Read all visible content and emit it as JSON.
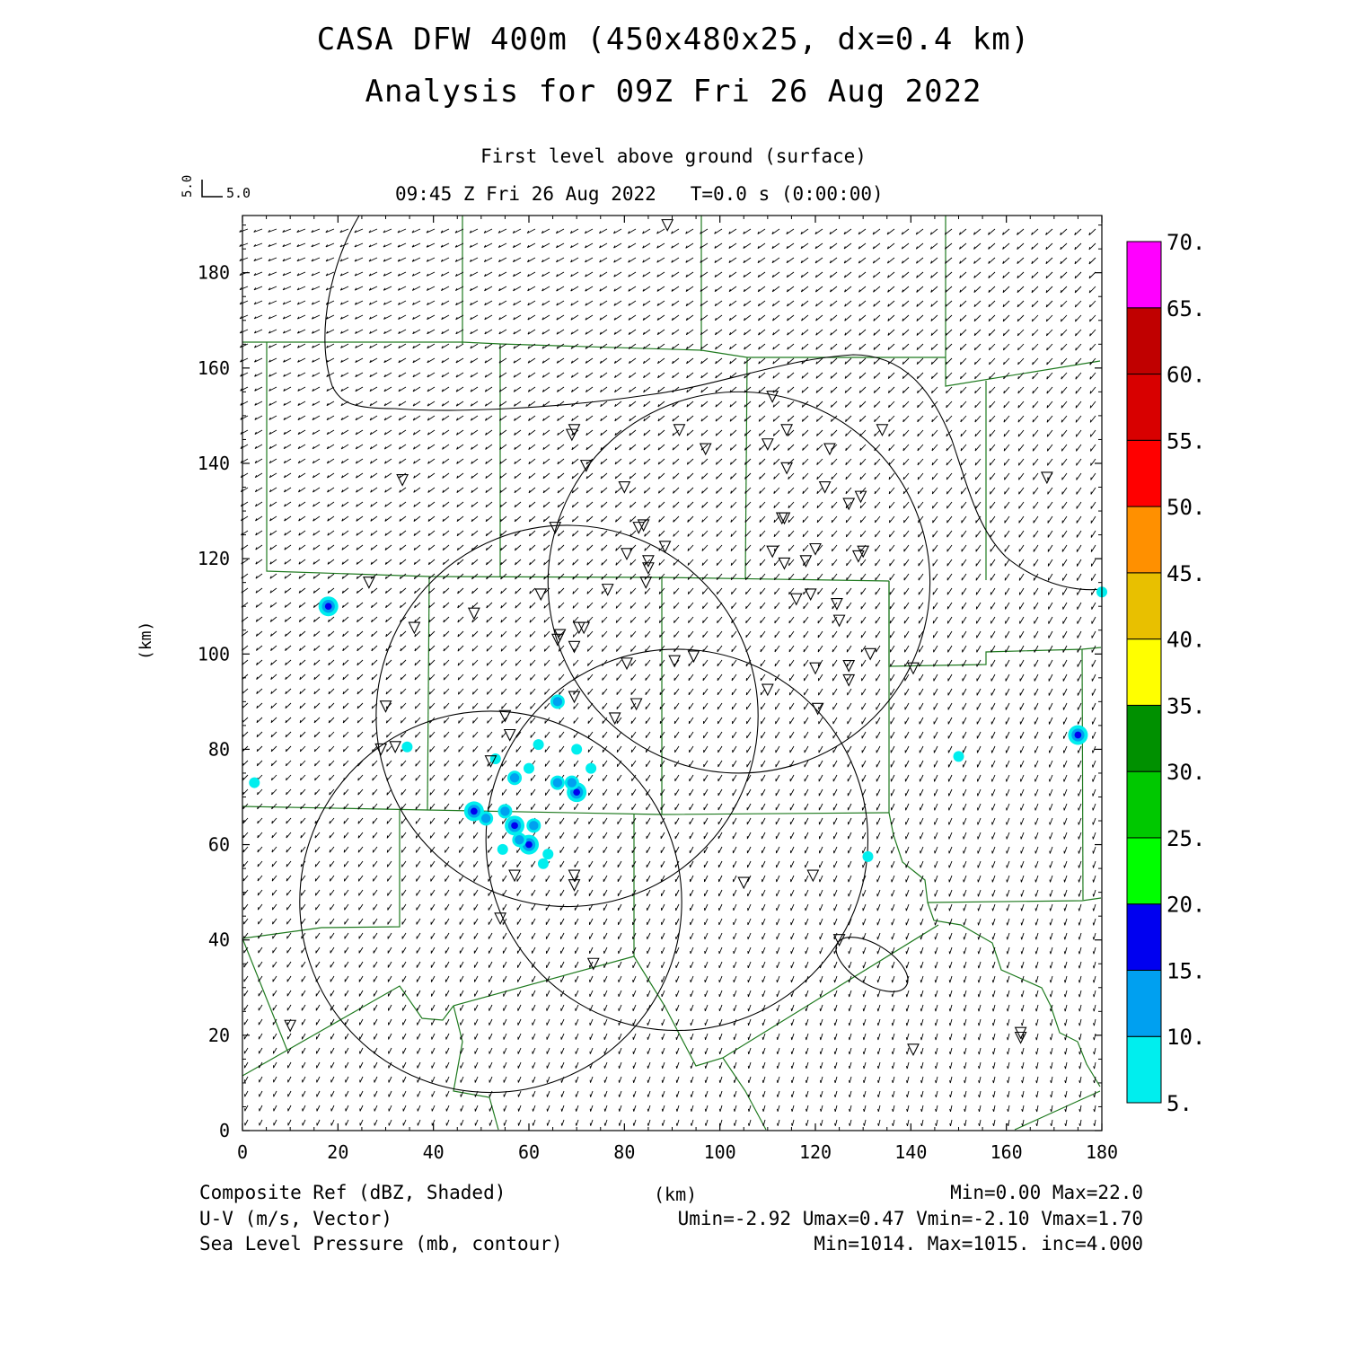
{
  "title": {
    "line1": "CASA DFW 400m (450x480x25, dx=0.4 km)",
    "line2": "Analysis for 09Z Fri 26 Aug 2022"
  },
  "subtitle": {
    "level": "First level above ground (surface)",
    "time": "09:45 Z Fri 26 Aug 2022   T=0.0 s (0:00:00)"
  },
  "vector_key": {
    "u_label": "5.0",
    "v_label": "5.0"
  },
  "axes": {
    "xlabel": "(km)",
    "ylabel": "(km)",
    "xlim": [
      0,
      180
    ],
    "ylim": [
      0,
      192
    ],
    "xticks": [
      0,
      20,
      40,
      60,
      80,
      100,
      120,
      140,
      160,
      180
    ],
    "yticks": [
      0,
      20,
      40,
      60,
      80,
      100,
      120,
      140,
      160,
      180
    ]
  },
  "colorbar": {
    "labels": [
      "5.",
      "10.",
      "15.",
      "20.",
      "25.",
      "30.",
      "35.",
      "40.",
      "45.",
      "50.",
      "55.",
      "60.",
      "65.",
      "70."
    ],
    "colors": [
      "#00eeee",
      "#00a0f0",
      "#0000f0",
      "#00ff00",
      "#00c800",
      "#009000",
      "#ffff00",
      "#e8c000",
      "#ff9000",
      "#ff0000",
      "#d80000",
      "#c00000",
      "#ff00ff"
    ]
  },
  "legend": {
    "line1_left": "Composite Ref (dBZ, Shaded)",
    "line1_right": "Min=0.00 Max=22.0",
    "line2_left": "U-V (m/s, Vector)",
    "line2_right": "Umin=-2.92 Umax=0.47 Vmin=-2.10 Vmax=1.70",
    "line3_left": "Sea Level Pressure (mb, contour)",
    "line3_right": "Min=1014. Max=1015. inc=4.000"
  },
  "chart_data": {
    "type": "map",
    "radar_range_rings": [
      {
        "center_km": [
          52,
          48
        ],
        "radius_km": 40
      },
      {
        "center_km": [
          68,
          87
        ],
        "radius_km": 40
      },
      {
        "center_km": [
          91,
          61
        ],
        "radius_km": 40
      },
      {
        "center_km": [
          104,
          115
        ],
        "radius_km": 40
      }
    ],
    "reflectivity_echoes_km": [
      [
        18,
        110,
        15
      ],
      [
        175,
        83,
        15
      ],
      [
        180,
        113,
        8
      ],
      [
        2.5,
        73,
        8
      ],
      [
        48.5,
        67,
        15
      ],
      [
        51,
        65.5,
        10
      ],
      [
        55,
        67,
        12
      ],
      [
        57,
        64,
        15
      ],
      [
        61,
        64,
        12
      ],
      [
        60,
        60,
        15
      ],
      [
        58,
        61,
        10
      ],
      [
        64,
        58,
        8
      ],
      [
        57,
        74,
        12
      ],
      [
        60,
        76,
        8
      ],
      [
        62,
        81,
        8
      ],
      [
        66,
        73,
        10
      ],
      [
        70,
        71,
        15
      ],
      [
        69,
        73,
        12
      ],
      [
        73,
        76,
        8
      ],
      [
        70,
        80,
        8
      ],
      [
        66,
        90,
        10
      ],
      [
        34.5,
        80.5,
        8
      ],
      [
        150,
        78.5,
        8
      ],
      [
        131,
        57.5,
        8
      ],
      [
        53,
        78,
        8
      ],
      [
        63,
        56,
        8
      ],
      [
        54.5,
        59,
        8
      ]
    ],
    "stations_km": [
      [
        89,
        190
      ],
      [
        69.5,
        147
      ],
      [
        69,
        146
      ],
      [
        91.5,
        147
      ],
      [
        97,
        143
      ],
      [
        111,
        154
      ],
      [
        114,
        147
      ],
      [
        110,
        144
      ],
      [
        114,
        139
      ],
      [
        123,
        143
      ],
      [
        134,
        147
      ],
      [
        168.5,
        137
      ],
      [
        33.5,
        136.5
      ],
      [
        72,
        139.5
      ],
      [
        80,
        135
      ],
      [
        122,
        135
      ],
      [
        127,
        131.5
      ],
      [
        129.5,
        133
      ],
      [
        65.5,
        126.5
      ],
      [
        84,
        127
      ],
      [
        83,
        126.5
      ],
      [
        113,
        128.5
      ],
      [
        113.5,
        128.5
      ],
      [
        88.5,
        122.5
      ],
      [
        111,
        121.5
      ],
      [
        113.5,
        119
      ],
      [
        118,
        119.5
      ],
      [
        120,
        122
      ],
      [
        129,
        120.5
      ],
      [
        130,
        121.5
      ],
      [
        80.5,
        121
      ],
      [
        85,
        119.5
      ],
      [
        85,
        118
      ],
      [
        84.5,
        115
      ],
      [
        26.5,
        115
      ],
      [
        62.5,
        112.5
      ],
      [
        76.5,
        113.5
      ],
      [
        116,
        111.5
      ],
      [
        119,
        112.5
      ],
      [
        124.5,
        110.5
      ],
      [
        125,
        107
      ],
      [
        48.5,
        108.5
      ],
      [
        36,
        105.5
      ],
      [
        70.5,
        105.5
      ],
      [
        71.5,
        105.5
      ],
      [
        66.5,
        104
      ],
      [
        66,
        103
      ],
      [
        69.5,
        101.5
      ],
      [
        80.5,
        98
      ],
      [
        90.5,
        98.5
      ],
      [
        94.5,
        99.5
      ],
      [
        131.5,
        100
      ],
      [
        127,
        97.5
      ],
      [
        120,
        97
      ],
      [
        140.5,
        97
      ],
      [
        127,
        94.5
      ],
      [
        110,
        92.5
      ],
      [
        69.5,
        91
      ],
      [
        30,
        89
      ],
      [
        82.5,
        89.5
      ],
      [
        120.5,
        88.5
      ],
      [
        55,
        87
      ],
      [
        78,
        86.5
      ],
      [
        56,
        83
      ],
      [
        29,
        80
      ],
      [
        32,
        80.5
      ],
      [
        52,
        77.5
      ],
      [
        57,
        53.5
      ],
      [
        69.5,
        53.5
      ],
      [
        69.5,
        51.5
      ],
      [
        105,
        52
      ],
      [
        119.5,
        53.5
      ],
      [
        54,
        44.5
      ],
      [
        125,
        40
      ],
      [
        73.5,
        35
      ],
      [
        10,
        22
      ],
      [
        163,
        20.5
      ],
      [
        163,
        19.5
      ],
      [
        140.5,
        17
      ]
    ],
    "slp_contours_mb": [
      1015
    ]
  }
}
